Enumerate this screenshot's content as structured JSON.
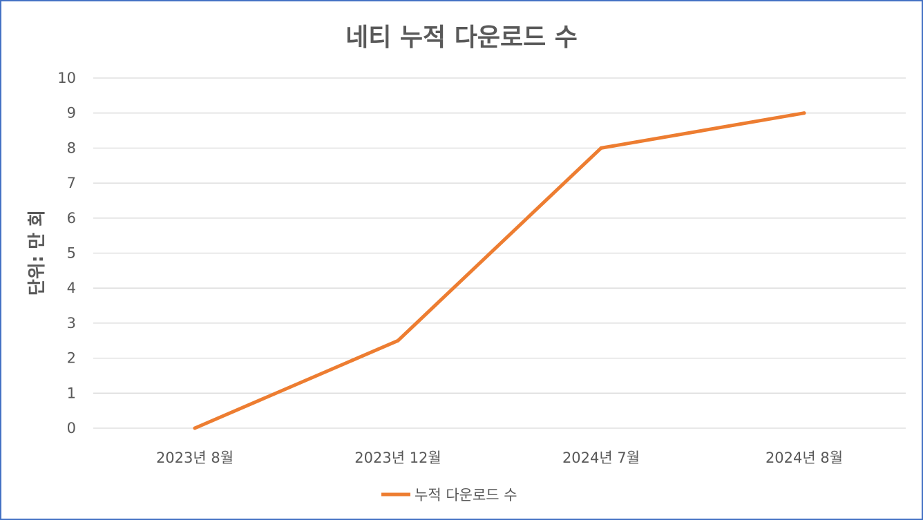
{
  "chart_data": {
    "type": "line",
    "title": "네티 누적 다운로드 수",
    "ylabel": "단위: 만 회",
    "xlabel": "",
    "categories": [
      "2023년 8월",
      "2023년 12월",
      "2024년 7월",
      "2024년 8월"
    ],
    "series": [
      {
        "name": "누적 다운로드 수",
        "values": [
          0,
          2.5,
          8,
          9
        ],
        "color": "#ed7d31"
      }
    ],
    "ylim": [
      0,
      10
    ],
    "yticks": [
      "0",
      "1",
      "2",
      "3",
      "4",
      "5",
      "6",
      "7",
      "8",
      "9",
      "10"
    ],
    "grid": true,
    "legend_position": "bottom"
  }
}
